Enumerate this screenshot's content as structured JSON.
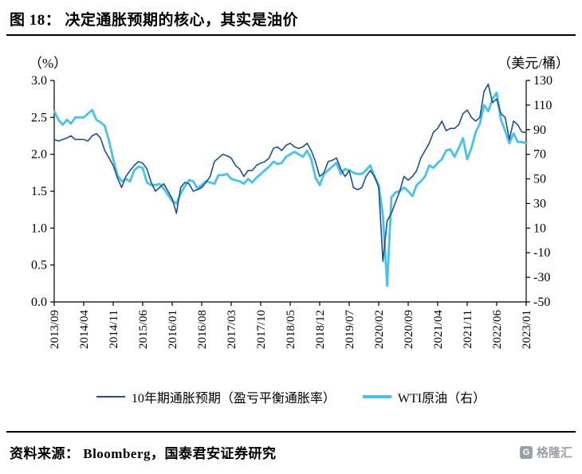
{
  "page": {
    "title": "图 18： 决定通胀预期的核心，其实是油价",
    "source_label": "资料来源： Bloomberg，国泰君安证券研究",
    "logo_letter": "G",
    "logo_text": "格隆汇"
  },
  "chart_data": {
    "type": "line",
    "title": "决定通胀预期的核心，其实是油价",
    "legend_position": "bottom",
    "grid": false,
    "x_start": "2013/09",
    "x_end": "2023/01",
    "x_interval": "month",
    "x_tick_every": 7,
    "x_tick_labels": [
      "2013/09",
      "2014/04",
      "2014/11",
      "2015/06",
      "2016/01",
      "2016/08",
      "2017/03",
      "2017/10",
      "2018/05",
      "2018/12",
      "2019/07",
      "2020/02",
      "2020/09",
      "2021/04",
      "2021/11",
      "2022/06",
      "2023/01"
    ],
    "left_axis": {
      "label": "（%）",
      "min": 0,
      "max": 3,
      "ticks": [
        "3.0",
        "2.5",
        "2.0",
        "1.5",
        "1.0",
        "0.5",
        "0.0"
      ]
    },
    "right_axis": {
      "label": "（美元/桶）",
      "min": -50,
      "max": 130,
      "ticks": [
        "130",
        "110",
        "90",
        "70",
        "50",
        "30",
        "10",
        "-10",
        "-30",
        "-50"
      ]
    },
    "series": [
      {
        "name": "10年期通胀预期（盈亏平衡通胀率）",
        "axis": "left",
        "color": "#1b4f9c",
        "width": 1.6,
        "values": [
          2.2,
          2.18,
          2.2,
          2.22,
          2.25,
          2.2,
          2.2,
          2.2,
          2.18,
          2.25,
          2.28,
          2.22,
          2.05,
          1.95,
          1.85,
          1.68,
          1.55,
          1.7,
          1.78,
          1.85,
          1.9,
          1.88,
          1.8,
          1.62,
          1.5,
          1.55,
          1.6,
          1.5,
          1.4,
          1.2,
          1.55,
          1.62,
          1.6,
          1.5,
          1.52,
          1.55,
          1.62,
          1.7,
          1.9,
          1.95,
          2.0,
          1.98,
          1.95,
          1.85,
          1.8,
          1.7,
          1.78,
          1.78,
          1.85,
          1.88,
          1.9,
          1.95,
          2.08,
          2.1,
          2.05,
          2.12,
          2.15,
          2.1,
          2.08,
          2.1,
          2.15,
          2.05,
          1.9,
          1.7,
          1.75,
          1.9,
          1.92,
          1.95,
          1.8,
          1.7,
          1.78,
          1.55,
          1.52,
          1.55,
          1.7,
          1.78,
          1.7,
          1.55,
          0.55,
          1.1,
          1.2,
          1.35,
          1.5,
          1.7,
          1.65,
          1.7,
          1.78,
          1.95,
          2.05,
          2.15,
          2.3,
          2.35,
          2.45,
          2.32,
          2.35,
          2.35,
          2.4,
          2.55,
          2.6,
          2.5,
          2.45,
          2.5,
          2.85,
          2.95,
          2.7,
          2.75,
          2.55,
          2.5,
          2.2,
          2.45,
          2.4,
          2.3,
          2.3
        ]
      },
      {
        "name": "WTI原油（右）",
        "axis": "right",
        "color": "#45c3f0",
        "width": 2.8,
        "values": [
          105,
          98,
          94,
          98,
          95,
          100,
          100,
          100,
          103,
          106,
          98,
          96,
          93,
          81,
          66,
          53,
          48,
          50,
          48,
          57,
          60,
          59,
          47,
          45,
          45,
          46,
          42,
          37,
          32,
          30,
          38,
          44,
          49,
          48,
          42,
          45,
          48,
          47,
          46,
          53,
          53,
          54,
          50,
          49,
          48,
          46,
          50,
          47,
          51,
          54,
          57,
          60,
          64,
          62,
          63,
          68,
          70,
          72,
          70,
          68,
          73,
          66,
          51,
          45,
          54,
          57,
          60,
          63,
          54,
          58,
          57,
          55,
          54,
          54,
          57,
          61,
          52,
          45,
          20,
          -37,
          35,
          39,
          40,
          43,
          40,
          36,
          45,
          48,
          52,
          61,
          59,
          63,
          66,
          73,
          74,
          68,
          75,
          83,
          66,
          75,
          88,
          95,
          110,
          105,
          115,
          120,
          98,
          89,
          79,
          87,
          80,
          80,
          79
        ]
      }
    ]
  }
}
